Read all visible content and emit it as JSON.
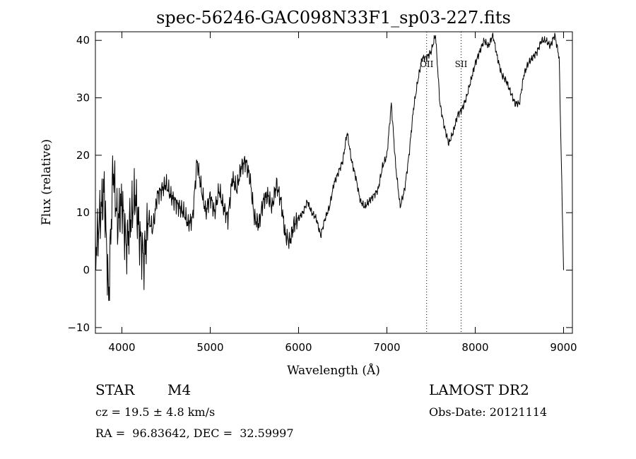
{
  "chart_data": {
    "type": "line",
    "title": "spec-56246-GAC098N33F1_sp03-227.fits",
    "xlabel": "Wavelength (Å)",
    "ylabel": "Flux (relative)",
    "xlim": [
      3700,
      9100
    ],
    "ylim": [
      -11,
      41.5
    ],
    "xticks": [
      4000,
      5000,
      6000,
      7000,
      8000,
      9000
    ],
    "yticks": [
      -10,
      0,
      10,
      20,
      30,
      40
    ],
    "grid": false,
    "series": [
      {
        "color": "#000000",
        "x": [
          3700,
          3750,
          3800,
          3850,
          3900,
          3950,
          4000,
          4050,
          4100,
          4150,
          4200,
          4250,
          4300,
          4350,
          4400,
          4450,
          4500,
          4550,
          4600,
          4650,
          4700,
          4750,
          4800,
          4850,
          4900,
          4950,
          5000,
          5050,
          5100,
          5150,
          5200,
          5250,
          5300,
          5350,
          5400,
          5450,
          5500,
          5550,
          5600,
          5650,
          5700,
          5750,
          5800,
          5850,
          5900,
          5950,
          6000,
          6050,
          6100,
          6150,
          6200,
          6250,
          6300,
          6350,
          6400,
          6450,
          6500,
          6550,
          6600,
          6650,
          6700,
          6750,
          6800,
          6850,
          6900,
          6950,
          7000,
          7050,
          7100,
          7150,
          7200,
          7250,
          7300,
          7350,
          7400,
          7450,
          7500,
          7550,
          7600,
          7650,
          7700,
          7750,
          7800,
          7850,
          7900,
          7950,
          8000,
          8050,
          8100,
          8150,
          8200,
          8250,
          8300,
          8350,
          8400,
          8450,
          8500,
          8550,
          8600,
          8650,
          8700,
          8750,
          8800,
          8850,
          8900,
          8950,
          9000
        ],
        "y": [
          3,
          9,
          14,
          -5,
          18,
          8,
          12,
          4,
          9,
          13,
          6,
          2,
          9,
          7,
          13,
          14,
          15,
          13,
          12,
          11,
          10,
          8,
          9,
          19,
          14,
          10,
          13,
          10,
          14,
          11,
          9,
          16,
          14,
          18,
          19,
          16,
          9,
          8,
          12,
          13,
          11,
          15,
          12,
          6,
          5,
          8,
          9,
          10,
          12,
          10,
          9,
          6,
          9,
          11,
          15,
          17,
          19,
          24,
          19,
          16,
          12,
          11,
          12,
          13,
          14,
          18,
          20,
          29,
          18,
          11,
          14,
          20,
          28,
          33,
          37,
          37,
          38,
          41,
          29,
          25,
          22,
          24,
          27,
          28,
          30,
          33,
          36,
          38,
          40,
          39,
          41,
          37,
          34,
          33,
          31,
          29,
          29,
          34,
          36,
          37,
          38,
          40,
          40,
          39,
          41,
          37,
          0
        ]
      }
    ],
    "lines": [
      {
        "x": 7450,
        "label": "OII"
      },
      {
        "x": 7840,
        "label": "SII"
      }
    ]
  },
  "info": {
    "object_class": "STAR",
    "subclass": "M4",
    "cz": "cz = 19.5 ± 4.8 km/s",
    "coords": "RA =  96.83642, DEC =  32.59997",
    "survey": "LAMOST DR2",
    "obs_date": "Obs-Date: 20121114"
  }
}
